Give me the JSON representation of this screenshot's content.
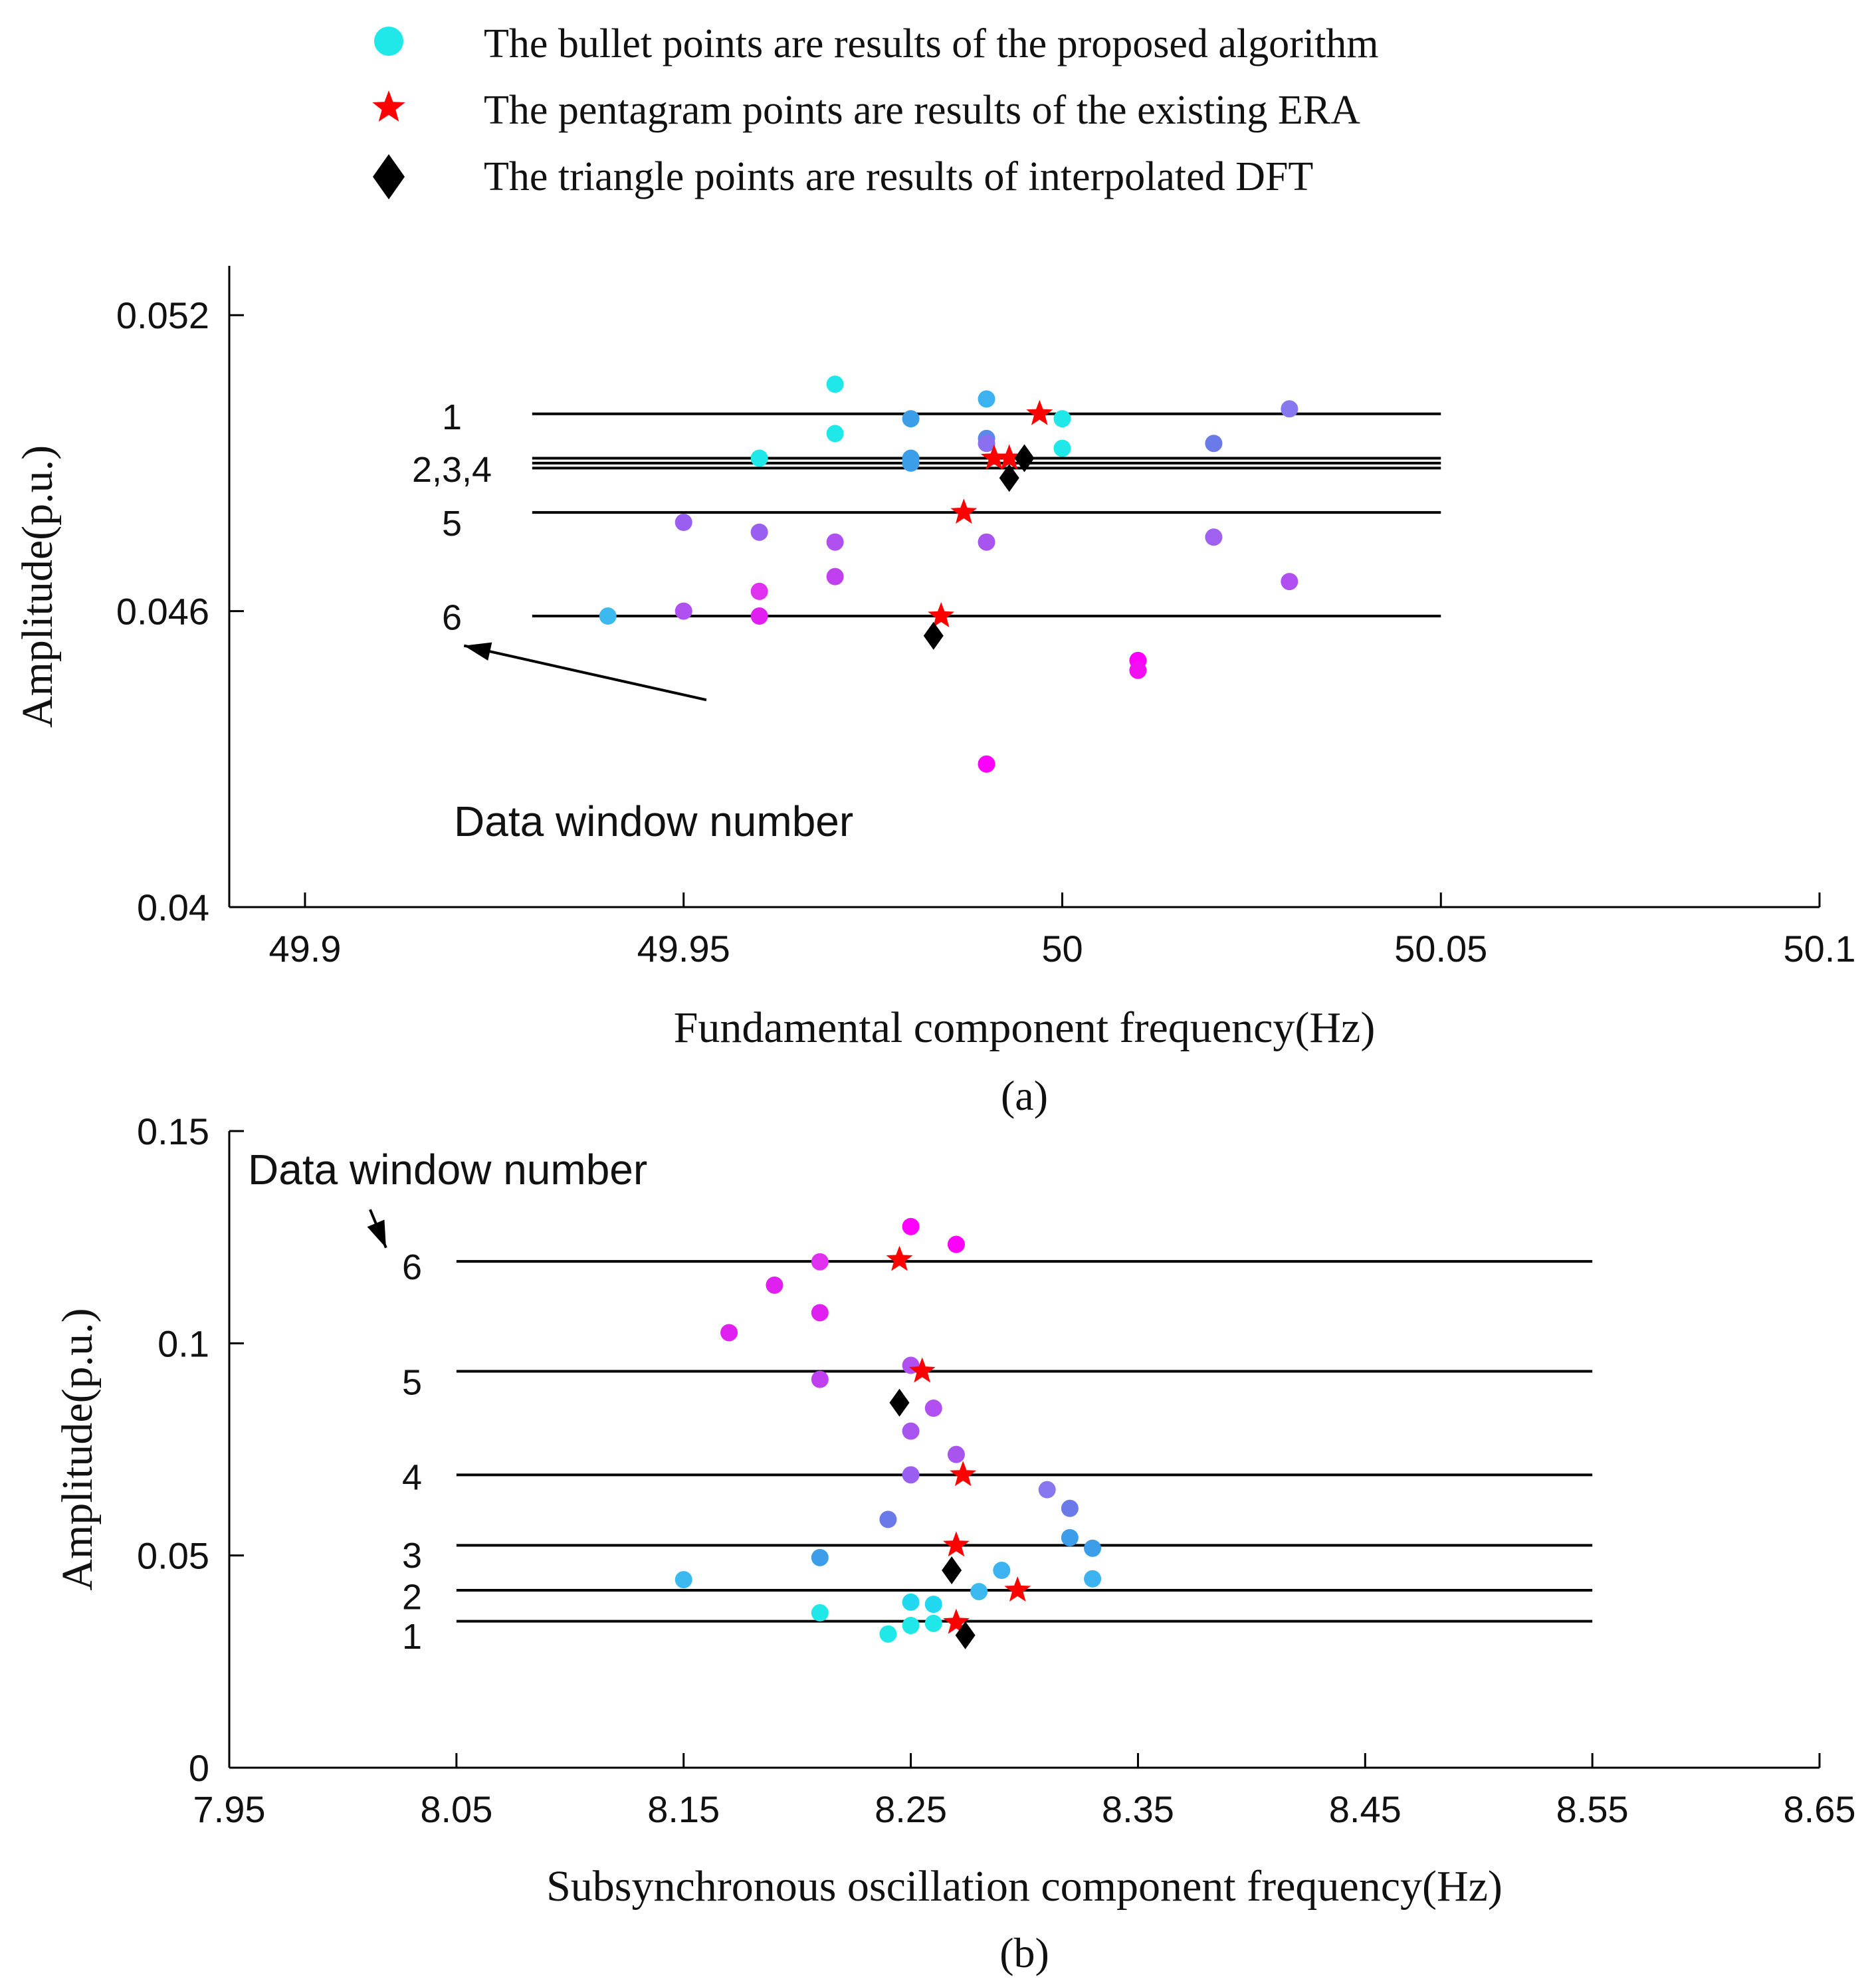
{
  "legend": {
    "items": [
      {
        "marker": "circle",
        "color": "#20e8e8",
        "label": "The bullet points are results of the proposed algorithm"
      },
      {
        "marker": "star",
        "color": "#ff0000",
        "label": "The pentagram points are results of the existing ERA"
      },
      {
        "marker": "diamond",
        "color": "#000000",
        "label": "The triangle points are results of interpolated DFT"
      }
    ]
  },
  "chart_data": [
    {
      "id": "a",
      "type": "scatter",
      "caption": "(a)",
      "xlabel": "Fundamental component frequency(Hz)",
      "ylabel": "Amplitude(p.u.)",
      "xlim": [
        49.89,
        50.1
      ],
      "ylim": [
        0.04,
        0.053
      ],
      "xticks": [
        49.9,
        49.95,
        50,
        50.05,
        50.1
      ],
      "xtick_labels": [
        "49.9",
        "49.95",
        "50",
        "50.05",
        "50.1"
      ],
      "yticks": [
        0.04,
        0.046,
        0.052
      ],
      "ytick_labels": [
        "0.04",
        "0.046",
        "0.052"
      ],
      "window_lines": {
        "x_range": [
          49.93,
          50.05
        ],
        "y": [
          0.05,
          0.0491,
          0.049,
          0.0489,
          0.048,
          0.0459
        ]
      },
      "window_labels": [
        {
          "text": "1",
          "y": 0.04998
        },
        {
          "text": "2,3,4",
          "y": 0.04892
        },
        {
          "text": "5",
          "y": 0.04783
        },
        {
          "text": "6",
          "y": 0.04592
        }
      ],
      "annotation": {
        "text": "Data window number",
        "arrow_from": [
          49.953,
          0.0442
        ],
        "arrow_to": [
          49.921,
          0.0453
        ]
      },
      "proposed_points": [
        {
          "x": 49.94,
          "y": 0.0459,
          "color": "#3cbaf0"
        },
        {
          "x": 49.96,
          "y": 0.0491,
          "color": "#20e8e8"
        },
        {
          "x": 49.97,
          "y": 0.0506,
          "color": "#20e8e8"
        },
        {
          "x": 49.97,
          "y": 0.0496,
          "color": "#20e8e8"
        },
        {
          "x": 49.98,
          "y": 0.0499,
          "color": "#3c9ee8"
        },
        {
          "x": 49.98,
          "y": 0.0491,
          "color": "#3c9ee8"
        },
        {
          "x": 49.98,
          "y": 0.049,
          "color": "#3c9ee8"
        },
        {
          "x": 49.99,
          "y": 0.0503,
          "color": "#3cb2f0"
        },
        {
          "x": 49.99,
          "y": 0.0495,
          "color": "#5a8ae8"
        },
        {
          "x": 49.99,
          "y": 0.0494,
          "color": "#8a70f0"
        },
        {
          "x": 50.0,
          "y": 0.0499,
          "color": "#20e8e8"
        },
        {
          "x": 50.0,
          "y": 0.0493,
          "color": "#20e8e8"
        },
        {
          "x": 50.02,
          "y": 0.0494,
          "color": "#6a7ae8"
        },
        {
          "x": 50.03,
          "y": 0.0501,
          "color": "#8878f0"
        },
        {
          "x": 49.95,
          "y": 0.0478,
          "color": "#9a5ef0"
        },
        {
          "x": 49.96,
          "y": 0.0476,
          "color": "#9a5ef0"
        },
        {
          "x": 49.97,
          "y": 0.0474,
          "color": "#b050f0"
        },
        {
          "x": 49.99,
          "y": 0.0474,
          "color": "#a855f0"
        },
        {
          "x": 50.02,
          "y": 0.0475,
          "color": "#a060f0"
        },
        {
          "x": 50.03,
          "y": 0.0466,
          "color": "#b050f0"
        },
        {
          "x": 49.97,
          "y": 0.0467,
          "color": "#c040f0"
        },
        {
          "x": 49.96,
          "y": 0.0464,
          "color": "#e030f0"
        },
        {
          "x": 49.95,
          "y": 0.046,
          "color": "#b050f0"
        },
        {
          "x": 49.96,
          "y": 0.0459,
          "color": "#e020f0"
        },
        {
          "x": 50.01,
          "y": 0.045,
          "color": "#ff00ff"
        },
        {
          "x": 50.01,
          "y": 0.0448,
          "color": "#f010f0"
        },
        {
          "x": 49.99,
          "y": 0.0429,
          "color": "#ff00ff"
        }
      ],
      "era_points": [
        {
          "x": 49.997,
          "y": 0.05
        },
        {
          "x": 49.991,
          "y": 0.0491
        },
        {
          "x": 49.993,
          "y": 0.0491
        },
        {
          "x": 49.987,
          "y": 0.048
        },
        {
          "x": 49.984,
          "y": 0.0459
        }
      ],
      "dft_points": [
        {
          "x": 49.995,
          "y": 0.0491
        },
        {
          "x": 49.993,
          "y": 0.0487
        },
        {
          "x": 49.983,
          "y": 0.0455
        }
      ]
    },
    {
      "id": "b",
      "type": "scatter",
      "caption": "(b)",
      "xlabel": "Subsynchronous oscillation component frequency(Hz)",
      "ylabel": "Amplitude(p.u.)",
      "xlim": [
        7.95,
        8.65
      ],
      "ylim": [
        0,
        0.15
      ],
      "xticks": [
        7.95,
        8.05,
        8.15,
        8.25,
        8.35,
        8.45,
        8.55,
        8.65
      ],
      "xtick_labels": [
        "7.95",
        "8.05",
        "8.15",
        "8.25",
        "8.35",
        "8.45",
        "8.55",
        "8.65"
      ],
      "yticks": [
        0,
        0.05,
        0.1,
        0.15
      ],
      "ytick_labels": [
        "0",
        "0.05",
        "0.1",
        "0.15"
      ],
      "window_lines": {
        "x_range": [
          8.05,
          8.55
        ],
        "y": [
          0.0345,
          0.0418,
          0.0524,
          0.069,
          0.0934,
          0.1193
        ]
      },
      "window_labels": [
        {
          "text": "1",
          "y": 0.0315
        },
        {
          "text": "2",
          "y": 0.0408
        },
        {
          "text": "3",
          "y": 0.0506
        },
        {
          "text": "4",
          "y": 0.069
        },
        {
          "text": "5",
          "y": 0.0914
        },
        {
          "text": "6",
          "y": 0.1185
        }
      ],
      "annotation": {
        "text": "Data window number",
        "arrow_from": [
          8.012,
          0.1315
        ],
        "arrow_to": [
          8.019,
          0.1225
        ]
      },
      "proposed_points": [
        {
          "x": 8.24,
          "y": 0.0315,
          "color": "#20e8e8"
        },
        {
          "x": 8.25,
          "y": 0.0335,
          "color": "#20e8e8"
        },
        {
          "x": 8.26,
          "y": 0.034,
          "color": "#20e8e8"
        },
        {
          "x": 8.21,
          "y": 0.0365,
          "color": "#20e8e8"
        },
        {
          "x": 8.25,
          "y": 0.039,
          "color": "#20d8f0"
        },
        {
          "x": 8.26,
          "y": 0.0385,
          "color": "#20d8f0"
        },
        {
          "x": 8.28,
          "y": 0.0415,
          "color": "#3cbaf0"
        },
        {
          "x": 8.15,
          "y": 0.0443,
          "color": "#3cbaf0"
        },
        {
          "x": 8.29,
          "y": 0.0465,
          "color": "#3cb2f0"
        },
        {
          "x": 8.33,
          "y": 0.0445,
          "color": "#3cb2f0"
        },
        {
          "x": 8.21,
          "y": 0.0495,
          "color": "#3c9ee8"
        },
        {
          "x": 8.32,
          "y": 0.0542,
          "color": "#3c9ee8"
        },
        {
          "x": 8.33,
          "y": 0.0517,
          "color": "#3c9ee8"
        },
        {
          "x": 8.24,
          "y": 0.0585,
          "color": "#6a7ae8"
        },
        {
          "x": 8.32,
          "y": 0.0611,
          "color": "#6a7ae8"
        },
        {
          "x": 8.31,
          "y": 0.0655,
          "color": "#8878f0"
        },
        {
          "x": 8.25,
          "y": 0.069,
          "color": "#9a5ef0"
        },
        {
          "x": 8.27,
          "y": 0.0738,
          "color": "#a855f0"
        },
        {
          "x": 8.25,
          "y": 0.0793,
          "color": "#a855f0"
        },
        {
          "x": 8.26,
          "y": 0.0847,
          "color": "#b050f0"
        },
        {
          "x": 8.25,
          "y": 0.0948,
          "color": "#b050f0"
        },
        {
          "x": 8.21,
          "y": 0.0915,
          "color": "#c040f0"
        },
        {
          "x": 8.17,
          "y": 0.1025,
          "color": "#e020f0"
        },
        {
          "x": 8.21,
          "y": 0.1072,
          "color": "#e020f0"
        },
        {
          "x": 8.19,
          "y": 0.1137,
          "color": "#e020f0"
        },
        {
          "x": 8.21,
          "y": 0.1192,
          "color": "#e030f0"
        },
        {
          "x": 8.25,
          "y": 0.1275,
          "color": "#ff00ff"
        },
        {
          "x": 8.27,
          "y": 0.1233,
          "color": "#ff00ff"
        }
      ],
      "era_points": [
        {
          "x": 8.27,
          "y": 0.0342
        },
        {
          "x": 8.297,
          "y": 0.0418
        },
        {
          "x": 8.27,
          "y": 0.0524
        },
        {
          "x": 8.273,
          "y": 0.069
        },
        {
          "x": 8.255,
          "y": 0.0934
        },
        {
          "x": 8.245,
          "y": 0.1197
        }
      ],
      "dft_points": [
        {
          "x": 8.274,
          "y": 0.0312
        },
        {
          "x": 8.268,
          "y": 0.0465
        },
        {
          "x": 8.245,
          "y": 0.086
        }
      ]
    }
  ]
}
